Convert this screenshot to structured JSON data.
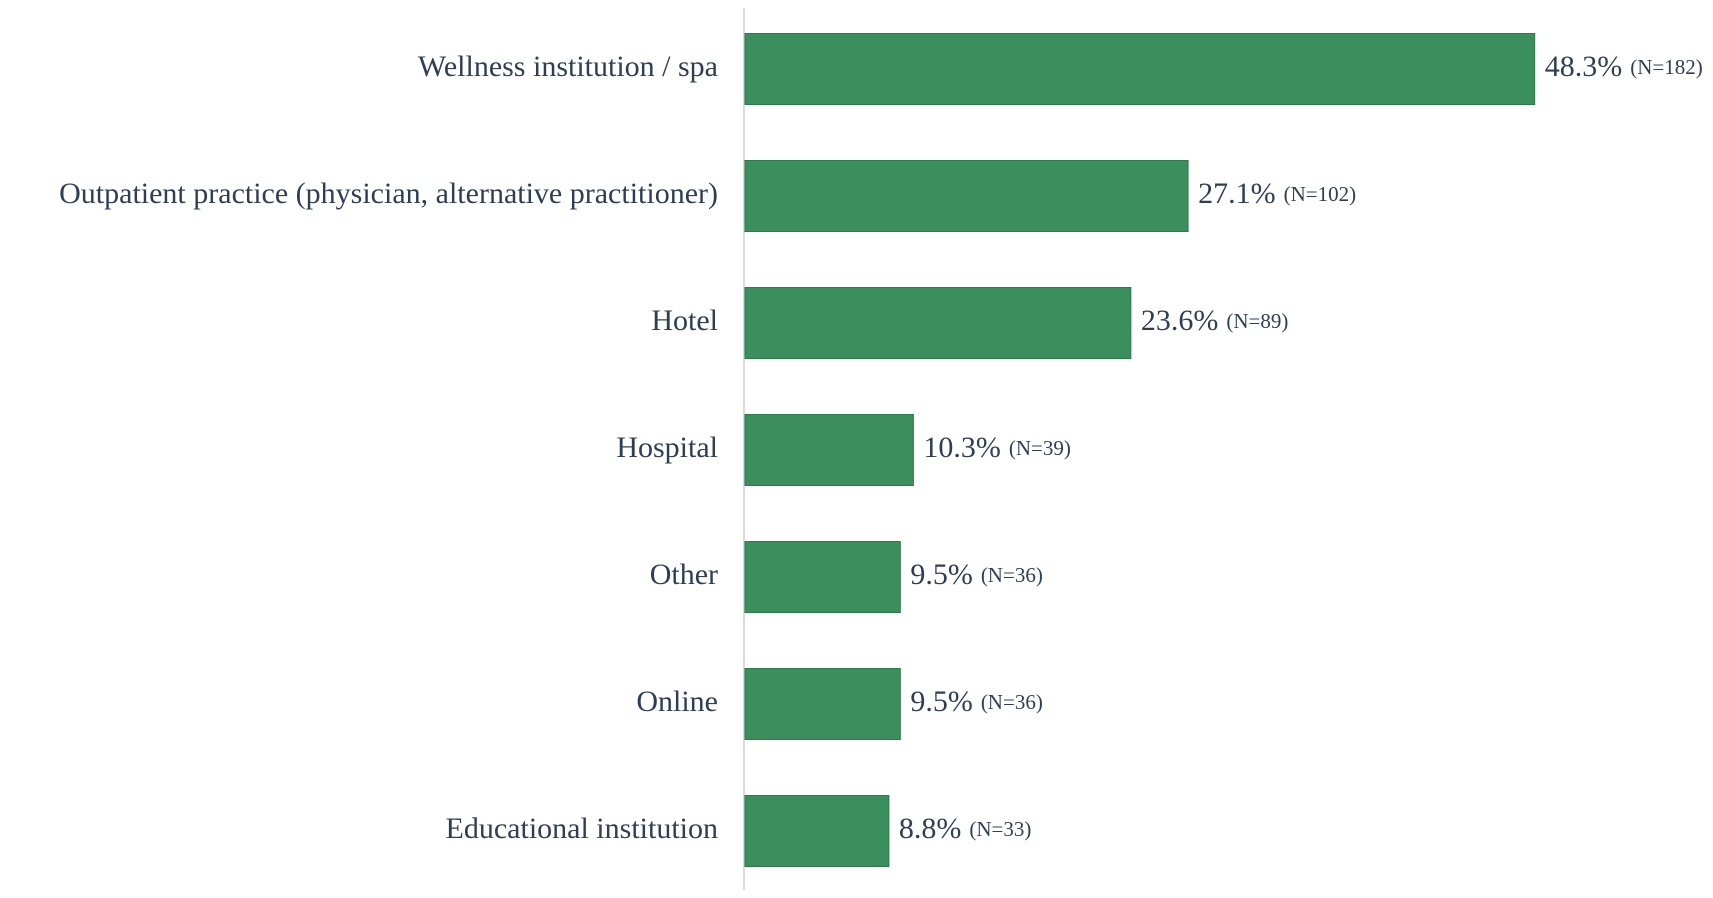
{
  "chart_data": {
    "type": "bar",
    "orientation": "horizontal",
    "title": "",
    "xlabel": "",
    "ylabel": "",
    "categories": [
      "Wellness institution / spa",
      "Outpatient practice (physician, alternative practitioner)",
      "Hotel",
      "Hospital",
      "Other",
      "Online",
      "Educational institution"
    ],
    "values": [
      48.3,
      27.1,
      23.6,
      10.3,
      9.5,
      9.5,
      8.8
    ],
    "value_labels": [
      "48.3%",
      "27.1%",
      "23.6%",
      "10.3%",
      "9.5%",
      "9.5%",
      "8.8%"
    ],
    "counts": [
      "(N=182)",
      "(N=102)",
      "(N=89)",
      "(N=39)",
      "(N=36)",
      "(N=36)",
      "(N=33)"
    ],
    "value_unit": "%",
    "xlim": [
      0,
      100
    ],
    "grid": false,
    "legend": "none",
    "colors": {
      "bar": "#3a8f5c",
      "bar_stroke": "#2f7a4c",
      "axis": "#d0d0d0",
      "text": "#2f3e55"
    }
  }
}
